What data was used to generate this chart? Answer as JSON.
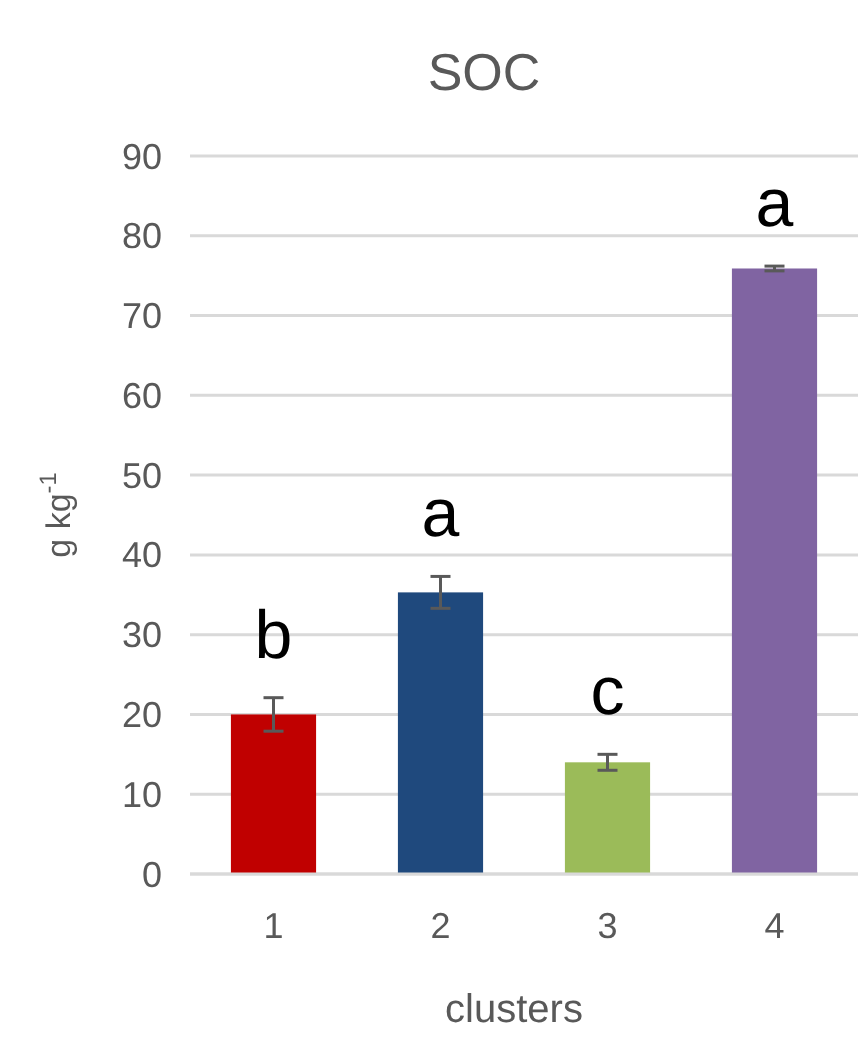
{
  "chart_data": {
    "type": "bar",
    "title": "SOC",
    "xlabel": "clusters",
    "ylabel": "g kg$^{-1}$",
    "categories": [
      "1",
      "2",
      "3",
      "4"
    ],
    "values": [
      20,
      35.3,
      14,
      75.9
    ],
    "colors": [
      "#c00000",
      "#1f497d",
      "#9bbb59",
      "#8064a2"
    ],
    "errors": [
      2.1,
      2,
      1,
      0.3
    ],
    "ylim": [
      0,
      90
    ],
    "yticks": [
      0,
      10,
      20,
      30,
      40,
      50,
      60,
      70,
      80,
      90
    ],
    "grid": "y",
    "annotations": [
      "b",
      "a",
      "c",
      "a"
    ]
  }
}
